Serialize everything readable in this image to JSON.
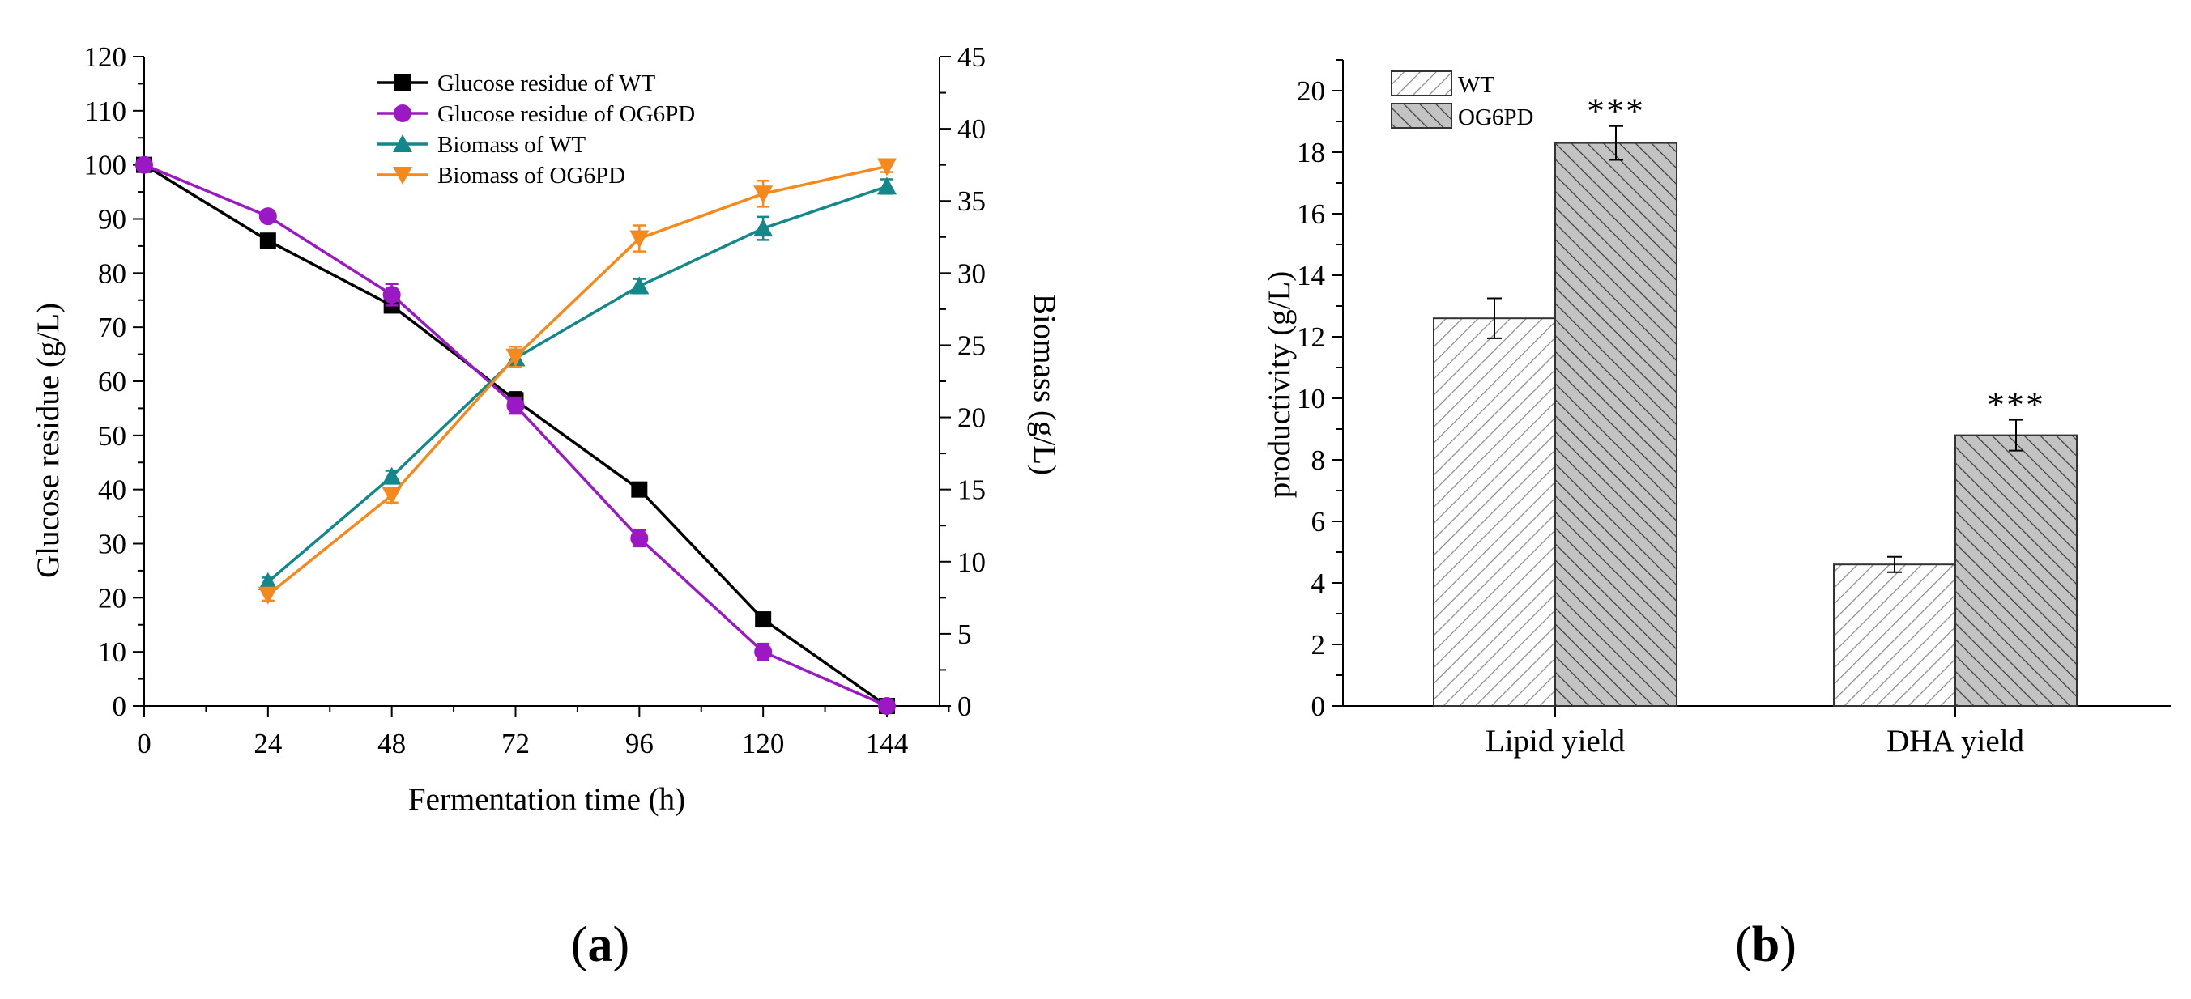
{
  "chart_data": [
    {
      "type": "line",
      "panel_label": "(a)",
      "panel_letter": "a",
      "xlabel": "Fermentation time (h)",
      "ylabel_left": "Glucose residue (g/L)",
      "ylabel_right": "Biomass (g/L)",
      "xlim": [
        0,
        144
      ],
      "ylim_left": [
        0,
        120
      ],
      "ylim_right": [
        0,
        45
      ],
      "x_ticks": [
        0,
        24,
        48,
        72,
        96,
        120,
        144
      ],
      "y_left_ticks": [
        0,
        10,
        20,
        30,
        40,
        50,
        60,
        70,
        80,
        90,
        100,
        110,
        120
      ],
      "y_right_ticks": [
        0,
        5,
        10,
        15,
        20,
        25,
        30,
        35,
        40,
        45
      ],
      "legend_position": "top-center",
      "grid": false,
      "series": [
        {
          "name": "Glucose residue of WT",
          "axis": "left",
          "color": "#000000",
          "marker": "square",
          "x": [
            0,
            24,
            48,
            72,
            96,
            120,
            144
          ],
          "y": [
            100,
            86,
            74,
            56.5,
            40,
            16,
            0
          ],
          "err": [
            0.5,
            1.0,
            1.2,
            1.5,
            1.0,
            1.0,
            0
          ]
        },
        {
          "name": "Glucose residue of OG6PD",
          "axis": "left",
          "color": "#9b19c4",
          "marker": "circle",
          "x": [
            0,
            24,
            48,
            72,
            96,
            120,
            144
          ],
          "y": [
            100,
            90.5,
            76,
            55.5,
            31,
            10,
            0
          ],
          "err": [
            0.5,
            1.0,
            2.0,
            1.5,
            1.5,
            1.5,
            0
          ]
        },
        {
          "name": "Biomass of WT",
          "axis": "right",
          "color": "#13878a",
          "marker": "triangle-up",
          "x": [
            24,
            48,
            72,
            96,
            120,
            144
          ],
          "y": [
            8.6,
            15.9,
            24.1,
            29.1,
            33.1,
            36
          ],
          "err": [
            0.3,
            0.4,
            0.6,
            0.5,
            0.8,
            0.5
          ]
        },
        {
          "name": "Biomass of OG6PD",
          "axis": "right",
          "color": "#f5891c",
          "marker": "triangle-down",
          "x": [
            24,
            48,
            72,
            96,
            120,
            144
          ],
          "y": [
            7.7,
            14.6,
            24.2,
            32.4,
            35.5,
            37.4
          ],
          "err": [
            0.4,
            0.5,
            0.7,
            0.9,
            0.9,
            0.4
          ]
        }
      ]
    },
    {
      "type": "bar",
      "panel_label": "(b)",
      "panel_letter": "b",
      "ylabel": "productivity (g/L)",
      "xlabel": "",
      "categories": [
        "Lipid yield",
        "DHA yield"
      ],
      "ylim": [
        0,
        21
      ],
      "y_ticks": [
        0,
        2,
        4,
        6,
        8,
        10,
        12,
        14,
        16,
        18,
        20
      ],
      "legend_position": "top-left",
      "grid": false,
      "significance_marker": "***",
      "series": [
        {
          "name": "WT",
          "pattern": "diagonal-up",
          "values": [
            12.6,
            4.6
          ],
          "err": [
            0.65,
            0.25
          ],
          "significance": [
            "",
            ""
          ]
        },
        {
          "name": "OG6PD",
          "pattern": "diagonal-down",
          "values": [
            18.3,
            8.8
          ],
          "err": [
            0.55,
            0.5
          ],
          "significance": [
            "***",
            "***"
          ]
        }
      ]
    }
  ]
}
